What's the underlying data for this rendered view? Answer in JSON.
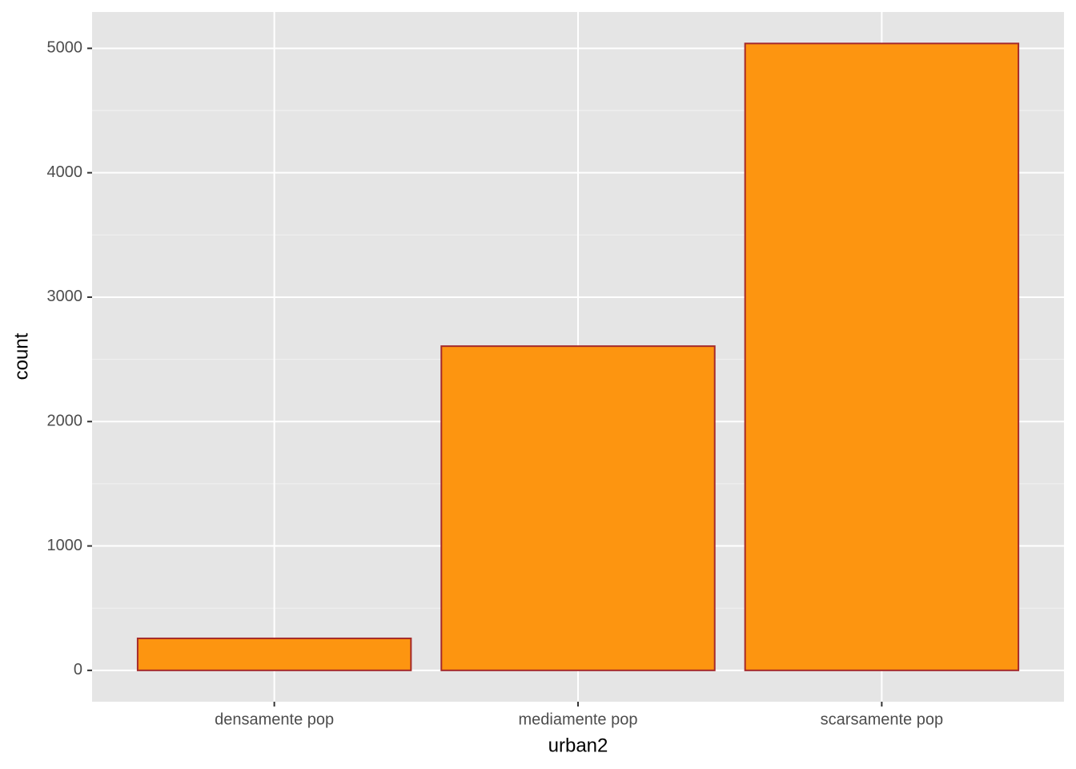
{
  "chart_data": {
    "type": "bar",
    "x_label": "urban2",
    "y_label": "count",
    "categories": [
      "densamente pop",
      "mediamente pop",
      "scarsamente pop"
    ],
    "values": [
      257,
      2606,
      5039
    ],
    "color": "#fd9510",
    "edge_color": "#a52a2a",
    "ylim": [
      -252,
      5292
    ],
    "yticks": [
      0,
      1000,
      2000,
      3000,
      4000,
      5000
    ],
    "grid": true
  }
}
